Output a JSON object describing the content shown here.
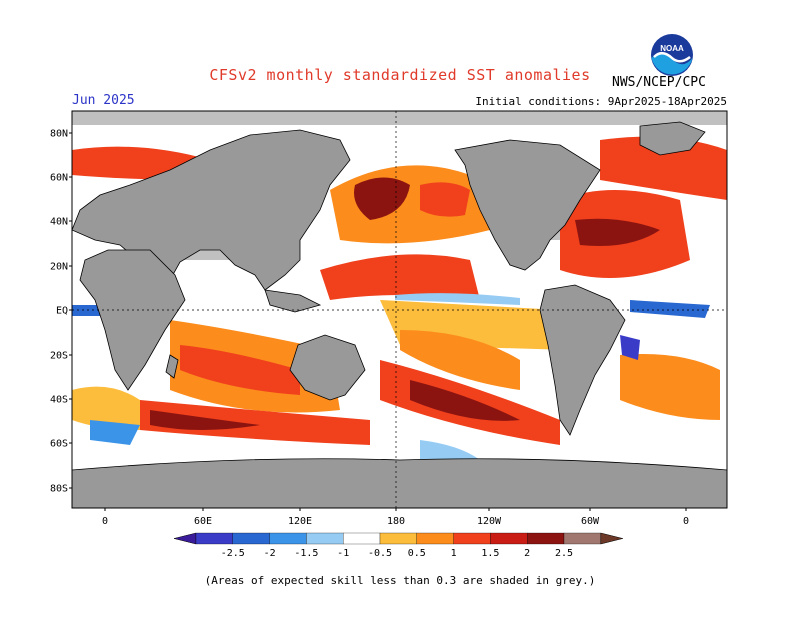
{
  "header": {
    "title": "CFSv2 monthly standardized SST anomalies",
    "month": "Jun 2025",
    "initial_conditions": "Initial conditions: 9Apr2025-18Apr2025",
    "agency": "NWS/NCEP/CPC",
    "logo_text": "NOAA"
  },
  "map": {
    "lat_labels": [
      "80N",
      "60N",
      "40N",
      "20N",
      "EQ",
      "20S",
      "40S",
      "60S",
      "80S"
    ],
    "lon_labels": [
      "0",
      "60E",
      "120E",
      "180",
      "120W",
      "60W",
      "0"
    ],
    "gridlines": "dotted",
    "land_color": "#999999",
    "low_skill_color": "#c0c0c0"
  },
  "colorbar": {
    "tick_labels": [
      "-2.5",
      "-2",
      "-1.5",
      "-1",
      "-0.5",
      "0.5",
      "1",
      "1.5",
      "2",
      "2.5"
    ],
    "colors": [
      "#3a1c9a",
      "#3a3cc8",
      "#2868d0",
      "#3c94e8",
      "#96ccf4",
      "#ffffff",
      "#fcbc3c",
      "#fc8c1c",
      "#f0401c",
      "#c81c14",
      "#8c1410",
      "#a07870",
      "#6c3828"
    ]
  },
  "footer": {
    "note": "(Areas of expected skill less than 0.3 are shaded in grey.)"
  }
}
